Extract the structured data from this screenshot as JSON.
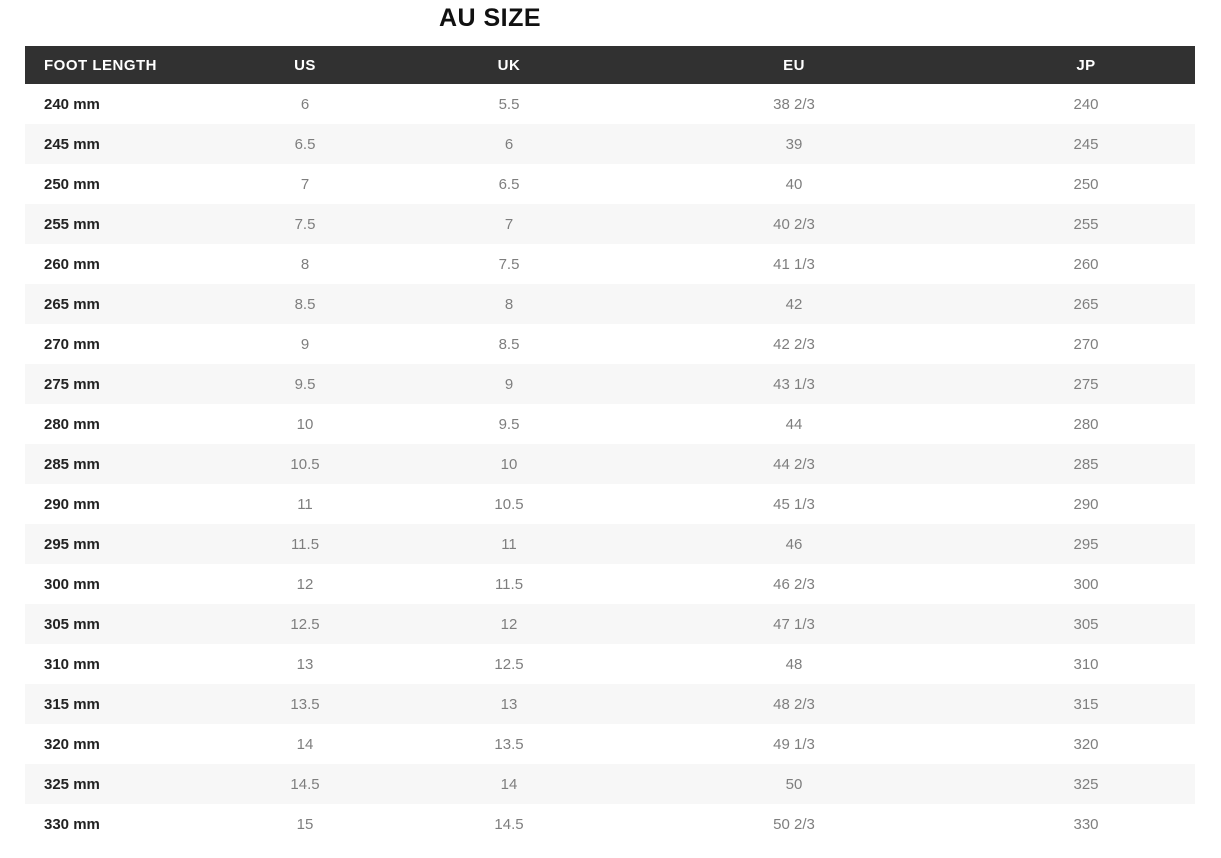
{
  "title": "AU SIZE",
  "table": {
    "columns": [
      "FOOT LENGTH",
      "US",
      "UK",
      "EU",
      "JP"
    ],
    "rows": [
      [
        "240 mm",
        "6",
        "5.5",
        "38 2/3",
        "240"
      ],
      [
        "245 mm",
        "6.5",
        "6",
        "39",
        "245"
      ],
      [
        "250 mm",
        "7",
        "6.5",
        "40",
        "250"
      ],
      [
        "255 mm",
        "7.5",
        "7",
        "40 2/3",
        "255"
      ],
      [
        "260 mm",
        "8",
        "7.5",
        "41 1/3",
        "260"
      ],
      [
        "265 mm",
        "8.5",
        "8",
        "42",
        "265"
      ],
      [
        "270 mm",
        "9",
        "8.5",
        "42 2/3",
        "270"
      ],
      [
        "275 mm",
        "9.5",
        "9",
        "43 1/3",
        "275"
      ],
      [
        "280 mm",
        "10",
        "9.5",
        "44",
        "280"
      ],
      [
        "285 mm",
        "10.5",
        "10",
        "44 2/3",
        "285"
      ],
      [
        "290 mm",
        "11",
        "10.5",
        "45 1/3",
        "290"
      ],
      [
        "295 mm",
        "11.5",
        "11",
        "46",
        "295"
      ],
      [
        "300 mm",
        "12",
        "11.5",
        "46 2/3",
        "300"
      ],
      [
        "305 mm",
        "12.5",
        "12",
        "47 1/3",
        "305"
      ],
      [
        "310 mm",
        "13",
        "12.5",
        "48",
        "310"
      ],
      [
        "315 mm",
        "13.5",
        "13",
        "48 2/3",
        "315"
      ],
      [
        "320 mm",
        "14",
        "13.5",
        "49 1/3",
        "320"
      ],
      [
        "325 mm",
        "14.5",
        "14",
        "50",
        "325"
      ],
      [
        "330 mm",
        "15",
        "14.5",
        "50 2/3",
        "330"
      ]
    ]
  },
  "colors": {
    "header_bg": "#313131",
    "header_text": "#ffffff",
    "row_alt_bg": "#f7f7f7",
    "cell_text": "#7e7e7e",
    "foot_length_text": "#222222",
    "title_text": "#111111"
  }
}
